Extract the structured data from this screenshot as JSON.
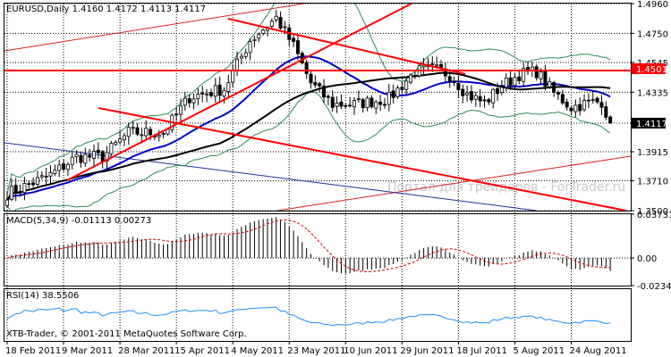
{
  "window": {
    "symbol_header": "EURUSD,Daily  1.4160 1.4172 1.4113 1.4117",
    "watermark": "Портал для трейдеров - ForTrader.ru",
    "copyright": "XTB-Trader, © 2001-2011 MetaQuotes Software Corp."
  },
  "colors": {
    "background": "#ffffff",
    "candle": "#000000",
    "bollinger": "#2e8b57",
    "ma_fast": "#0000cd",
    "ma_slow": "#000000",
    "trendline": "#ff0000",
    "channel_thin": "#dd2222",
    "blue_line": "#1f2fa0",
    "macd_signal": "#d40000",
    "rsi": "#1e90ff",
    "grid": "#000000",
    "level_badge": "#ff0000",
    "price_badge": "#000000",
    "watermark": "#c8c8c8"
  },
  "chart_data": [
    {
      "type": "candlestick",
      "title": "EURUSD,Daily",
      "quote": {
        "open": 1.416,
        "high": 1.4172,
        "low": 1.4113,
        "close": 1.4117
      },
      "x_tick_labels": [
        "18 Feb 2011",
        "9 Mar 2011",
        "28 Mar 2011",
        "15 Apr 2011",
        "4 May 2011",
        "23 May 2011",
        "10 Jun 2011",
        "29 Jun 2011",
        "18 Jul 2011",
        "5 Aug 2011",
        "24 Aug 2011"
      ],
      "y_tick_labels": [
        "1.4960",
        "1.4750",
        "1.4545",
        "1.4335",
        "1.4117",
        "1.3915",
        "1.3710",
        "1.3500"
      ],
      "ylim": [
        1.35,
        1.496
      ],
      "level_line": 1.4501,
      "level_label": "1.4501",
      "last_price_label": "1.4117",
      "bars_count": 140,
      "close_path": [
        [
          0,
          1.362
        ],
        [
          10,
          1.375
        ],
        [
          16,
          1.388
        ],
        [
          22,
          1.388
        ],
        [
          28,
          1.405
        ],
        [
          36,
          1.405
        ],
        [
          42,
          1.43
        ],
        [
          50,
          1.436
        ],
        [
          56,
          1.47
        ],
        [
          62,
          1.486
        ],
        [
          66,
          1.466
        ],
        [
          70,
          1.44
        ],
        [
          75,
          1.425
        ],
        [
          80,
          1.425
        ],
        [
          88,
          1.429
        ],
        [
          94,
          1.448
        ],
        [
          98,
          1.45
        ],
        [
          102,
          1.446
        ],
        [
          106,
          1.432
        ],
        [
          110,
          1.426
        ],
        [
          114,
          1.438
        ],
        [
          118,
          1.446
        ],
        [
          122,
          1.448
        ],
        [
          126,
          1.433
        ],
        [
          130,
          1.423
        ],
        [
          134,
          1.426
        ],
        [
          137,
          1.427
        ],
        [
          139,
          1.4117
        ]
      ],
      "annotations": [
        "Портал для трейдеров - ForTrader.ru"
      ]
    },
    {
      "type": "macd",
      "label": "MACD(5,34,9) -0.01113 0.00273",
      "y_tick_labels": [
        "0.03731",
        "0.00",
        "-0.0234"
      ],
      "ylim": [
        -0.0234,
        0.03731
      ]
    },
    {
      "type": "line",
      "label": "RSI(14) 38.5506",
      "ylim": [
        0,
        100
      ]
    }
  ]
}
